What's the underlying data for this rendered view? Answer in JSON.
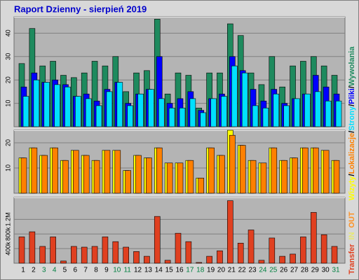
{
  "chart_data": {
    "type": "bar",
    "title": "Raport Dzienny -  sierpień 2019",
    "categories": [
      "1",
      "2",
      "3",
      "4",
      "5",
      "6",
      "7",
      "8",
      "9",
      "10",
      "11",
      "12",
      "13",
      "14",
      "15",
      "16",
      "17",
      "18",
      "19",
      "20",
      "21",
      "22",
      "23",
      "24",
      "25",
      "26",
      "27",
      "28",
      "29",
      "30",
      "31"
    ],
    "category_colors": [
      "#000000",
      "#000000",
      "#008040",
      "#008040",
      "#000000",
      "#000000",
      "#000000",
      "#000000",
      "#000000",
      "#008040",
      "#008040",
      "#000000",
      "#000000",
      "#000000",
      "#000000",
      "#000000",
      "#008040",
      "#008040",
      "#000000",
      "#000000",
      "#000000",
      "#000000",
      "#000000",
      "#008040",
      "#008040",
      "#000000",
      "#000000",
      "#000000",
      "#000000",
      "#000000",
      "#008040"
    ],
    "separator": "/",
    "panels": [
      {
        "ylim": [
          0,
          47
        ],
        "yticks": [
          10,
          20,
          30,
          40
        ],
        "grid": true,
        "series": [
          {
            "name": "Wywołania",
            "color": "#1e8a5e",
            "values": [
              27,
              42,
              26,
              28,
              22,
              21,
              23,
              28,
              26,
              30,
              15,
              23,
              24,
              46,
              14,
              23,
              22,
              8,
              23,
              23,
              44,
              39,
              23,
              18,
              30,
              17,
              26,
              28,
              30,
              26,
              22
            ]
          },
          {
            "name": "Pliki",
            "color": "#0000ff",
            "values": [
              17,
              23,
              19,
              20,
              18,
              13,
              14,
              11,
              16,
              19,
              10,
              14,
              16,
              30,
              10,
              12,
              15,
              7,
              12,
              14,
              30,
              24,
              16,
              11,
              16,
              10,
              12,
              14,
              22,
              17,
              14
            ]
          },
          {
            "name": "Strony",
            "color": "#00e0ff",
            "values": [
              13,
              20,
              19,
              18,
              17,
              13,
              12,
              9,
              15,
              19,
              9,
              14,
              16,
              12,
              8,
              8,
              12,
              6,
              12,
              13,
              26,
              23,
              9,
              8,
              14,
              9,
              12,
              14,
              15,
              11,
              11
            ]
          }
        ]
      },
      {
        "ylim": [
          0,
          25
        ],
        "yticks": [
          10,
          20
        ],
        "grid": true,
        "series": [
          {
            "name": "Wizyty",
            "color": "#ffff00",
            "values": [
              14,
              18,
              15,
              18,
              13,
              17,
              15,
              13,
              17,
              17,
              9,
              15,
              14,
              18,
              12,
              12,
              13,
              6,
              18,
              15,
              25,
              19,
              13,
              12,
              18,
              13,
              14,
              18,
              18,
              17,
              13
            ]
          },
          {
            "name": "Lokalizacje",
            "color": "#ff8000",
            "values": [
              14,
              18,
              15,
              18,
              13,
              17,
              15,
              13,
              17,
              17,
              9,
              15,
              14,
              18,
              12,
              12,
              13,
              6,
              18,
              15,
              23,
              19,
              13,
              12,
              18,
              13,
              14,
              18,
              18,
              17,
              13
            ]
          }
        ]
      },
      {
        "ylim": [
          0,
          1800000
        ],
        "yticks": [
          {
            "value": 400000,
            "label": "400k"
          },
          {
            "value": 800000,
            "label": "800k"
          },
          {
            "value": 1200000,
            "label": "1.2M"
          }
        ],
        "grid": true,
        "series": [
          {
            "name": "Transfer",
            "color": "#e04020",
            "values": [
              720000,
              860000,
              460000,
              720000,
              60000,
              460000,
              440000,
              460000,
              720000,
              590000,
              440000,
              320000,
              190000,
              1280000,
              80000,
              820000,
              590000,
              20000,
              190000,
              340000,
              1710000,
              550000,
              910000,
              80000,
              690000,
              190000,
              250000,
              720000,
              1390000,
              780000,
              460000
            ]
          }
        ],
        "legend_extra": [
          {
            "name": "IN",
            "color": "#e8e870"
          },
          {
            "name": "OUT",
            "color": "#ff9020"
          }
        ]
      }
    ]
  }
}
